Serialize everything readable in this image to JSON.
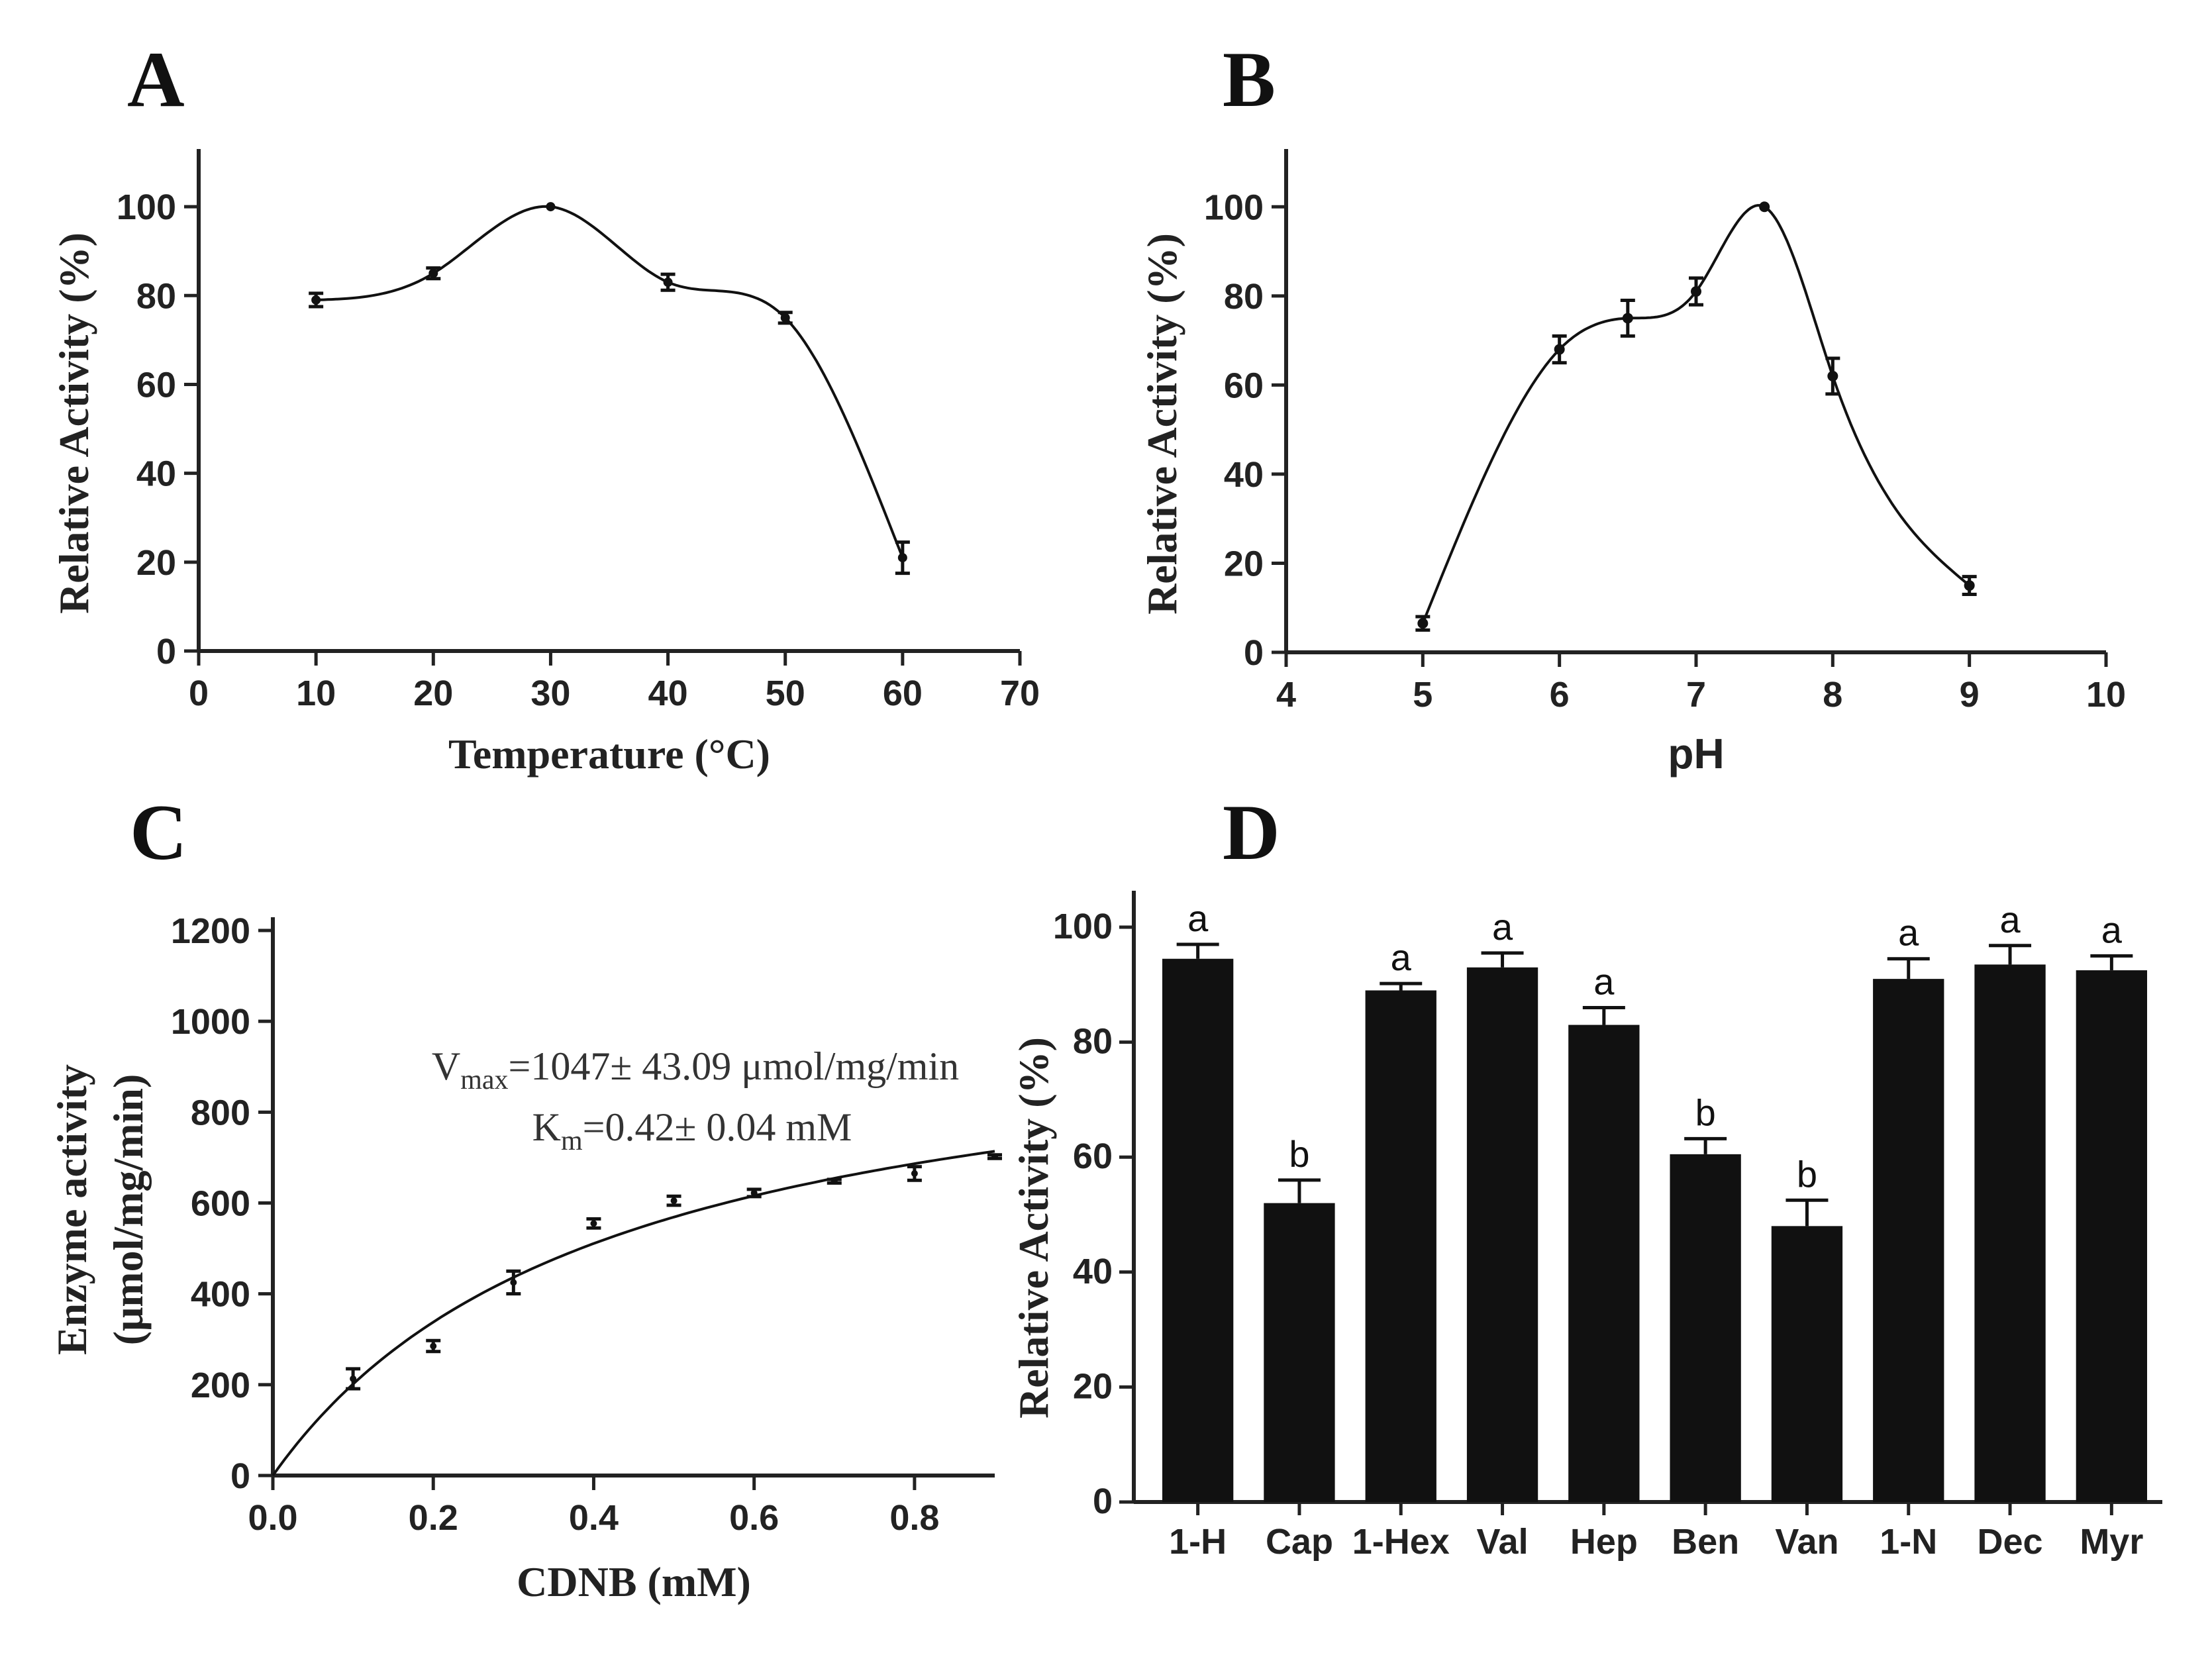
{
  "chart_data": [
    {
      "panel": "A",
      "type": "line",
      "xlabel": "Temperature (°C)",
      "ylabel": "Relative Activity (%)",
      "xlim": [
        0,
        70
      ],
      "ylim": [
        0,
        110
      ],
      "xticks": [
        0,
        10,
        20,
        30,
        40,
        50,
        60,
        70
      ],
      "yticks": [
        0,
        20,
        40,
        60,
        80,
        100
      ],
      "x": [
        10,
        20,
        30,
        40,
        50,
        60
      ],
      "y": [
        79,
        85,
        100,
        83,
        75,
        21
      ],
      "error": [
        1.5,
        1.2,
        0,
        1.8,
        1.2,
        3.5
      ]
    },
    {
      "panel": "B",
      "type": "line",
      "xlabel": "pH",
      "ylabel": "Relative Activity (%)",
      "xlim": [
        4,
        10
      ],
      "ylim": [
        0,
        110
      ],
      "xticks": [
        4,
        5,
        6,
        7,
        8,
        9,
        10
      ],
      "yticks": [
        0,
        20,
        40,
        60,
        80,
        100
      ],
      "x": [
        5,
        6,
        6.5,
        7,
        7.5,
        8,
        9
      ],
      "y": [
        6.5,
        68,
        75,
        81,
        100,
        62,
        15
      ],
      "error": [
        1.5,
        3,
        4,
        3,
        0,
        4,
        2
      ]
    },
    {
      "panel": "C",
      "type": "scatter",
      "xlabel": "CDNB (mM)",
      "ylabel": "Enzyme activity",
      "ylabel_line2": "(μmol/mg/min)",
      "xlim": [
        0,
        0.9
      ],
      "ylim": [
        0,
        1200
      ],
      "xticks": [
        "0.0",
        "0.2",
        "0.4",
        "0.6",
        "0.8"
      ],
      "yticks": [
        0,
        200,
        400,
        600,
        800,
        1000,
        1200
      ],
      "x": [
        0.1,
        0.2,
        0.3,
        0.4,
        0.5,
        0.6,
        0.7,
        0.8,
        0.9
      ],
      "y": [
        213,
        285,
        425,
        555,
        605,
        622,
        648,
        665,
        702
      ],
      "error": [
        22,
        12,
        25,
        10,
        10,
        8,
        4,
        15,
        4
      ],
      "fit": {
        "model": "Michaelis-Menten",
        "vmax": 1047,
        "km": 0.42
      },
      "annotation_vmax": {
        "symbol": "V",
        "subscript": "max",
        "text": "=1047± 43.09 μmol/mg/min"
      },
      "annotation_km": {
        "symbol": "K",
        "subscript": "m",
        "text": "=0.42± 0.04 mM"
      }
    },
    {
      "panel": "D",
      "type": "bar",
      "xlabel": "",
      "ylabel": "Relative Activity (%)",
      "ylim": [
        0,
        100
      ],
      "yticks": [
        0,
        20,
        40,
        60,
        80,
        100
      ],
      "categories": [
        "1-H",
        "Cap",
        "1-Hex",
        "Val",
        "Hep",
        "Ben",
        "Van",
        "1-N",
        "Dec",
        "Myr"
      ],
      "values": [
        94.5,
        52,
        89,
        93,
        83,
        60.5,
        48,
        91,
        93.5,
        92.5
      ],
      "error": [
        2.5,
        4,
        1.2,
        2.5,
        3,
        2.7,
        4.5,
        3.5,
        3.3,
        2.5
      ],
      "significance": [
        "a",
        "b",
        "a",
        "a",
        "a",
        "b",
        "b",
        "a",
        "a",
        "a"
      ],
      "bar_color": "#111111"
    }
  ]
}
